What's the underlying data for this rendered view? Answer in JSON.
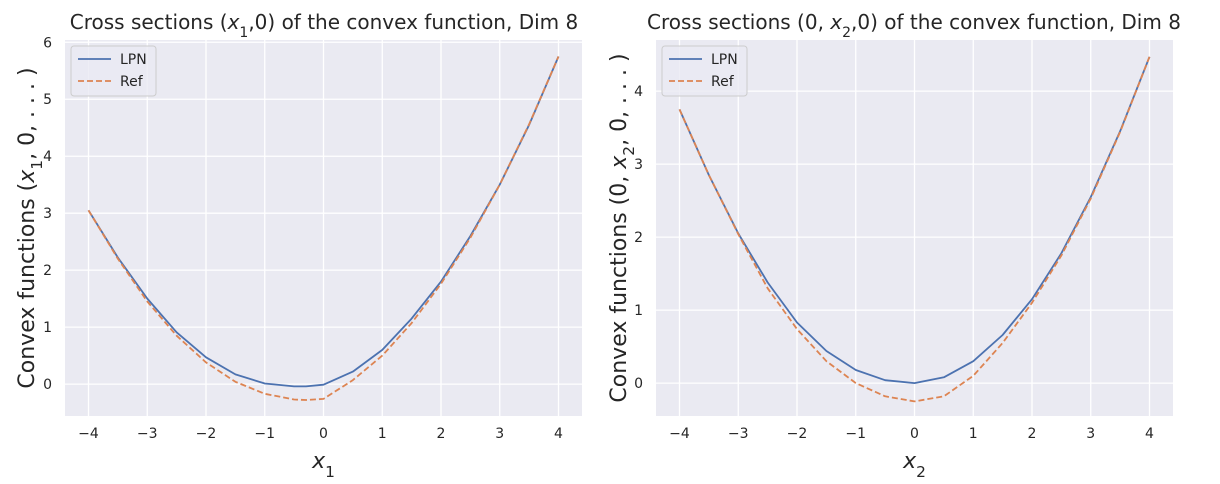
{
  "chart_data": [
    {
      "type": "line",
      "title_parts": [
        "Cross sections (",
        "x",
        "1",
        ",0) of the convex function, Dim 8"
      ],
      "xlabel": [
        "x",
        "1"
      ],
      "ylabel_parts": [
        "Convex functions (",
        "x",
        "1",
        ", 0, . . . )"
      ],
      "xlim": [
        -4.4,
        4.4
      ],
      "ylim": [
        -0.56,
        6.04
      ],
      "xticks": [
        -4,
        -3,
        -2,
        -1,
        0,
        1,
        2,
        3,
        4
      ],
      "xtick_labels": [
        "−4",
        "−3",
        "−2",
        "−1",
        "0",
        "1",
        "2",
        "3",
        "4"
      ],
      "yticks": [
        0,
        1,
        2,
        3,
        4,
        5,
        6
      ],
      "ytick_labels": [
        "0",
        "1",
        "2",
        "3",
        "4",
        "5",
        "6"
      ],
      "grid": true,
      "legend_position": "top-left",
      "x": [
        -4,
        -3.5,
        -3,
        -2.5,
        -2,
        -1.5,
        -1,
        -0.5,
        -0.3,
        0,
        0.5,
        1,
        1.5,
        2,
        2.5,
        3,
        3.5,
        4
      ],
      "series": [
        {
          "name": "LPN",
          "color": "#4c72b0",
          "dash": "solid",
          "values": [
            3.05,
            2.22,
            1.5,
            0.91,
            0.47,
            0.17,
            0.01,
            -0.04,
            -0.04,
            -0.01,
            0.22,
            0.6,
            1.15,
            1.8,
            2.6,
            3.5,
            4.55,
            5.75
          ]
        },
        {
          "name": "Ref",
          "color": "#dd8452",
          "dash": "dashed",
          "values": [
            3.05,
            2.2,
            1.45,
            0.85,
            0.38,
            0.04,
            -0.17,
            -0.27,
            -0.28,
            -0.26,
            0.07,
            0.5,
            1.07,
            1.76,
            2.57,
            3.5,
            4.56,
            5.75
          ]
        }
      ]
    },
    {
      "type": "line",
      "title_parts": [
        "Cross sections (0, ",
        "x",
        "2",
        ",0) of the convex function, Dim 8"
      ],
      "xlabel": [
        "x",
        "2"
      ],
      "ylabel_parts": [
        "Convex functions (0, ",
        "x",
        "2",
        ", 0, . . . )"
      ],
      "xlim": [
        -4.4,
        4.4
      ],
      "ylim": [
        -0.45,
        4.7
      ],
      "xticks": [
        -4,
        -3,
        -2,
        -1,
        0,
        1,
        2,
        3,
        4
      ],
      "xtick_labels": [
        "−4",
        "−3",
        "−2",
        "−1",
        "0",
        "1",
        "2",
        "3",
        "4"
      ],
      "yticks": [
        0,
        1,
        2,
        3,
        4
      ],
      "ytick_labels": [
        "0",
        "1",
        "2",
        "3",
        "4"
      ],
      "grid": true,
      "legend_position": "top-left",
      "x": [
        -4,
        -3.5,
        -3,
        -2.5,
        -2,
        -1.5,
        -1,
        -0.5,
        0,
        0.5,
        1,
        1.5,
        2,
        2.5,
        3,
        3.5,
        4
      ],
      "series": [
        {
          "name": "LPN",
          "color": "#4c72b0",
          "dash": "solid",
          "values": [
            3.75,
            2.85,
            2.05,
            1.38,
            0.83,
            0.44,
            0.18,
            0.04,
            0.0,
            0.08,
            0.3,
            0.66,
            1.15,
            1.78,
            2.55,
            3.45,
            4.47
          ]
        },
        {
          "name": "Ref",
          "color": "#dd8452",
          "dash": "dashed",
          "values": [
            3.75,
            2.85,
            2.04,
            1.3,
            0.74,
            0.3,
            0.0,
            -0.18,
            -0.25,
            -0.18,
            0.1,
            0.55,
            1.1,
            1.75,
            2.53,
            3.44,
            4.47
          ]
        }
      ]
    }
  ]
}
